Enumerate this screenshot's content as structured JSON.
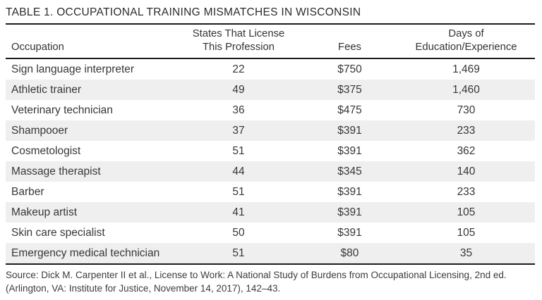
{
  "title": "TABLE 1. OCCUPATIONAL TRAINING MISMATCHES IN WISCONSIN",
  "table": {
    "headers": {
      "occupation": [
        "Occupation"
      ],
      "states": [
        "States That License",
        "This Profession"
      ],
      "fees": [
        "Fees"
      ],
      "days": [
        "Days of",
        "Education/Experience"
      ]
    },
    "rows": [
      [
        "Sign language interpreter",
        "22",
        "$750",
        "1,469"
      ],
      [
        "Athletic trainer",
        "49",
        "$375",
        "1,460"
      ],
      [
        "Veterinary technician",
        "36",
        "$475",
        "730"
      ],
      [
        "Shampooer",
        "37",
        "$391",
        "233"
      ],
      [
        "Cosmetologist",
        "51",
        "$391",
        "362"
      ],
      [
        "Massage therapist",
        "44",
        "$345",
        "140"
      ],
      [
        "Barber",
        "51",
        "$391",
        "233"
      ],
      [
        "Makeup artist",
        "41",
        "$391",
        "105"
      ],
      [
        "Skin care specialist",
        "50",
        "$391",
        "105"
      ],
      [
        "Emergency medical technician",
        "51",
        "$80",
        "35"
      ]
    ]
  },
  "source": {
    "line1": "Source: Dick M. Carpenter II et al., License to Work: A National Study of Burdens from Occupational Licensing, 2nd ed.",
    "line2": "(Arlington, VA: Institute for Justice, November 14, 2017), 142–43."
  },
  "colors": {
    "rule": "#1c1c1c",
    "row_stripe": "#efefef",
    "text": "#3a3a3a",
    "background": "#ffffff"
  }
}
